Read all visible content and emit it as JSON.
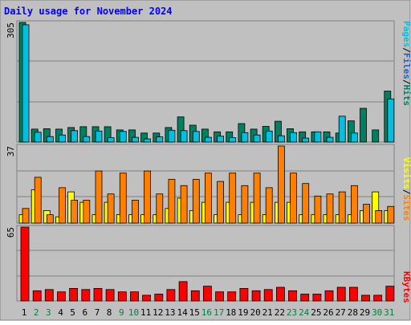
{
  "title": "Daily usage for November 2024",
  "colors": {
    "background": "#C0C0C0",
    "border": "#808080",
    "title": "#0000FF",
    "pages": "#00C0E0",
    "files": "#2060C0",
    "hits": "#008060",
    "visits": "#FFFF00",
    "sites": "#FF8000",
    "kbytes": "#FF0000",
    "weekend_day": "#008040"
  },
  "chart_data": [
    {
      "type": "bar",
      "panel": "hits-files-pages",
      "max_label": "305",
      "ylim": [
        0,
        305
      ],
      "categories": [
        "1",
        "2",
        "3",
        "4",
        "5",
        "6",
        "7",
        "8",
        "9",
        "10",
        "11",
        "12",
        "13",
        "14",
        "15",
        "16",
        "17",
        "18",
        "19",
        "20",
        "21",
        "22",
        "23",
        "24",
        "25",
        "26",
        "27",
        "28",
        "29",
        "30",
        "31"
      ],
      "series": [
        {
          "name": "Hits",
          "values": [
            305,
            33,
            34,
            33,
            37,
            39,
            39,
            39,
            31,
            31,
            23,
            23,
            37,
            64,
            43,
            33,
            26,
            26,
            47,
            33,
            40,
            53,
            34,
            26,
            26,
            26,
            23,
            54,
            86,
            31,
            130
          ]
        },
        {
          "name": "Files",
          "values": [
            299,
            25,
            14,
            18,
            29,
            14,
            28,
            11,
            27,
            12,
            8,
            13,
            30,
            29,
            27,
            12,
            15,
            11,
            24,
            18,
            28,
            16,
            24,
            10,
            26,
            12,
            66,
            23,
            0,
            0,
            110
          ]
        },
        {
          "name": "Pages",
          "values": [
            0,
            0,
            0,
            0,
            0,
            0,
            0,
            0,
            0,
            0,
            0,
            0,
            0,
            0,
            0,
            0,
            0,
            0,
            0,
            0,
            0,
            0,
            0,
            0,
            0,
            0,
            0,
            0,
            0,
            0,
            0
          ]
        }
      ],
      "legend": [
        "Pages",
        "Files",
        "Hits"
      ]
    },
    {
      "type": "bar",
      "panel": "visits-sites",
      "max_label": "37",
      "ylim": [
        0,
        37
      ],
      "categories": [
        "1",
        "2",
        "3",
        "4",
        "5",
        "6",
        "7",
        "8",
        "9",
        "10",
        "11",
        "12",
        "13",
        "14",
        "15",
        "16",
        "17",
        "18",
        "19",
        "20",
        "21",
        "22",
        "23",
        "24",
        "25",
        "26",
        "27",
        "28",
        "29",
        "30",
        "31"
      ],
      "series": [
        {
          "name": "Visits",
          "values": [
            4,
            16,
            6,
            3,
            15,
            10,
            4,
            10,
            4,
            4,
            4,
            4,
            7,
            12,
            6,
            10,
            4,
            10,
            4,
            10,
            4,
            10,
            10,
            4,
            4,
            4,
            4,
            4,
            6,
            15,
            6
          ]
        },
        {
          "name": "Sites",
          "values": [
            7,
            22,
            4,
            17,
            11,
            11,
            25,
            14,
            24,
            11,
            25,
            14,
            21,
            18,
            21,
            24,
            20,
            24,
            18,
            24,
            17,
            37,
            24,
            19,
            13,
            14,
            15,
            18,
            9,
            6,
            8
          ]
        }
      ],
      "legend": [
        "Visits",
        "Sites"
      ]
    },
    {
      "type": "bar",
      "panel": "kbytes",
      "max_label": "65",
      "ylim": [
        0,
        65
      ],
      "categories": [
        "1",
        "2",
        "3",
        "4",
        "5",
        "6",
        "7",
        "8",
        "9",
        "10",
        "11",
        "12",
        "13",
        "14",
        "15",
        "16",
        "17",
        "18",
        "19",
        "20",
        "21",
        "22",
        "23",
        "24",
        "25",
        "26",
        "27",
        "28",
        "29",
        "30",
        "31"
      ],
      "series": [
        {
          "name": "KBytes",
          "values": [
            65,
            9,
            10,
            8,
            11,
            10,
            11,
            10,
            8,
            8,
            5,
            6,
            10,
            17,
            9,
            13,
            8,
            8,
            11,
            9,
            10,
            12,
            9,
            6,
            6,
            9,
            12,
            12,
            5,
            5,
            13
          ]
        }
      ],
      "legend": [
        "KBytes"
      ]
    }
  ],
  "x_labels": [
    "1",
    "2",
    "3",
    "4",
    "5",
    "6",
    "7",
    "8",
    "9",
    "10",
    "11",
    "12",
    "13",
    "14",
    "15",
    "16",
    "17",
    "18",
    "19",
    "20",
    "21",
    "22",
    "23",
    "24",
    "25",
    "26",
    "27",
    "28",
    "29",
    "30",
    "31"
  ],
  "weekend_days": [
    "2",
    "3",
    "9",
    "10",
    "16",
    "17",
    "23",
    "24",
    "30",
    "31"
  ]
}
